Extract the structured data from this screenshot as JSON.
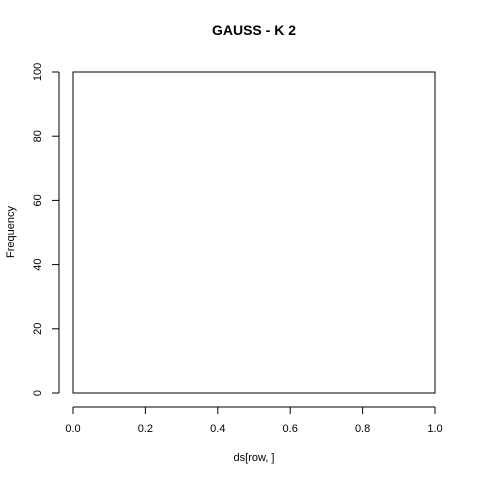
{
  "chart_data": {
    "type": "bar",
    "title": "GAUSS - K 2",
    "xlabel": "ds[row, ]",
    "ylabel": "Frequency",
    "xlim": [
      0,
      1
    ],
    "ylim": [
      0,
      100
    ],
    "x_ticks": [
      0.0,
      0.2,
      0.4,
      0.6,
      0.8,
      1.0
    ],
    "x_tick_labels": [
      "0.0",
      "0.2",
      "0.4",
      "0.6",
      "0.8",
      "1.0"
    ],
    "y_ticks": [
      0,
      20,
      40,
      60,
      80,
      100
    ],
    "y_tick_labels": [
      "0",
      "20",
      "40",
      "60",
      "80",
      "100"
    ],
    "bins": [],
    "values": [],
    "grid": false
  }
}
